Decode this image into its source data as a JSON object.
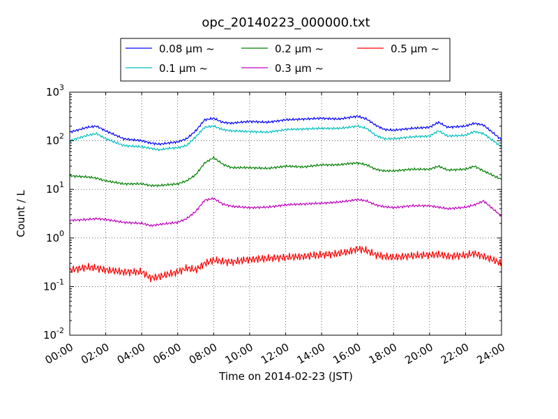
{
  "chart_data": {
    "type": "line",
    "title": "opc_20140223_000000.txt",
    "xlabel": "Time on 2014-02-23 (JST)",
    "ylabel": "Count / L",
    "x_ticks": [
      "00:00",
      "02:00",
      "04:00",
      "06:00",
      "08:00",
      "10:00",
      "12:00",
      "14:00",
      "16:00",
      "18:00",
      "20:00",
      "22:00",
      "24:00"
    ],
    "xlim_hours": [
      0,
      24
    ],
    "y_scale": "log",
    "ylim": [
      0.01,
      1000
    ],
    "y_tick_bases": [
      "10",
      "10",
      "10",
      "10",
      "10",
      "10"
    ],
    "y_tick_exponents": [
      "-2",
      "-1",
      "0",
      "1",
      "2",
      "3"
    ],
    "grid": true,
    "legend_position": "top",
    "x_hours": [
      0,
      1,
      1.5,
      2,
      3,
      4,
      4.5,
      5,
      5.5,
      6,
      6.5,
      7,
      7.5,
      8,
      8.5,
      9,
      10,
      11,
      12,
      13,
      14,
      15,
      15.5,
      16,
      16.5,
      17,
      17.5,
      18,
      19,
      20,
      20.5,
      21,
      22,
      22.5,
      23,
      24
    ],
    "series": [
      {
        "name": "0.08",
        "unit": "μm",
        "suffix": "~",
        "color": "#0000ff",
        "values": [
          150,
          190,
          200,
          160,
          110,
          100,
          90,
          85,
          90,
          95,
          110,
          160,
          270,
          290,
          240,
          230,
          250,
          240,
          270,
          280,
          290,
          280,
          300,
          320,
          280,
          210,
          170,
          165,
          180,
          190,
          240,
          190,
          200,
          230,
          210,
          105
        ]
      },
      {
        "name": "0.1",
        "unit": "μm",
        "suffix": "~",
        "color": "#00bfbf",
        "values": [
          100,
          130,
          140,
          110,
          80,
          75,
          70,
          65,
          70,
          72,
          80,
          120,
          190,
          200,
          170,
          160,
          155,
          150,
          170,
          175,
          180,
          180,
          190,
          200,
          180,
          130,
          110,
          110,
          120,
          125,
          160,
          125,
          130,
          155,
          140,
          75
        ]
      },
      {
        "name": "0.2",
        "unit": "μm",
        "suffix": "~",
        "color": "#008000",
        "values": [
          19,
          18,
          17,
          15,
          13,
          13,
          12,
          12,
          12.5,
          13,
          15,
          20,
          35,
          45,
          33,
          28,
          28,
          27,
          30,
          29,
          32,
          32,
          34,
          35,
          32,
          26,
          24,
          24,
          26,
          26,
          30,
          25,
          26,
          30,
          24,
          16
        ]
      },
      {
        "name": "0.3",
        "unit": "μm",
        "suffix": "~",
        "color": "#bf00bf",
        "values": [
          2.3,
          2.4,
          2.5,
          2.4,
          2.1,
          2.0,
          1.8,
          1.9,
          2.0,
          2.1,
          2.5,
          3.5,
          6.0,
          6.5,
          5.0,
          4.5,
          4.2,
          4.3,
          4.8,
          5.0,
          5.2,
          5.5,
          5.8,
          6.2,
          5.8,
          4.8,
          4.4,
          4.2,
          4.6,
          4.6,
          4.3,
          4.0,
          4.3,
          4.8,
          5.8,
          2.8
        ]
      },
      {
        "name": "0.5",
        "unit": "μm",
        "suffix": "~",
        "color": "#ff0000",
        "values": [
          0.22,
          0.25,
          0.24,
          0.22,
          0.2,
          0.2,
          0.15,
          0.16,
          0.18,
          0.2,
          0.24,
          0.22,
          0.3,
          0.35,
          0.33,
          0.32,
          0.36,
          0.38,
          0.4,
          0.42,
          0.45,
          0.48,
          0.52,
          0.6,
          0.55,
          0.45,
          0.42,
          0.4,
          0.43,
          0.45,
          0.46,
          0.42,
          0.44,
          0.48,
          0.42,
          0.3
        ]
      }
    ]
  }
}
